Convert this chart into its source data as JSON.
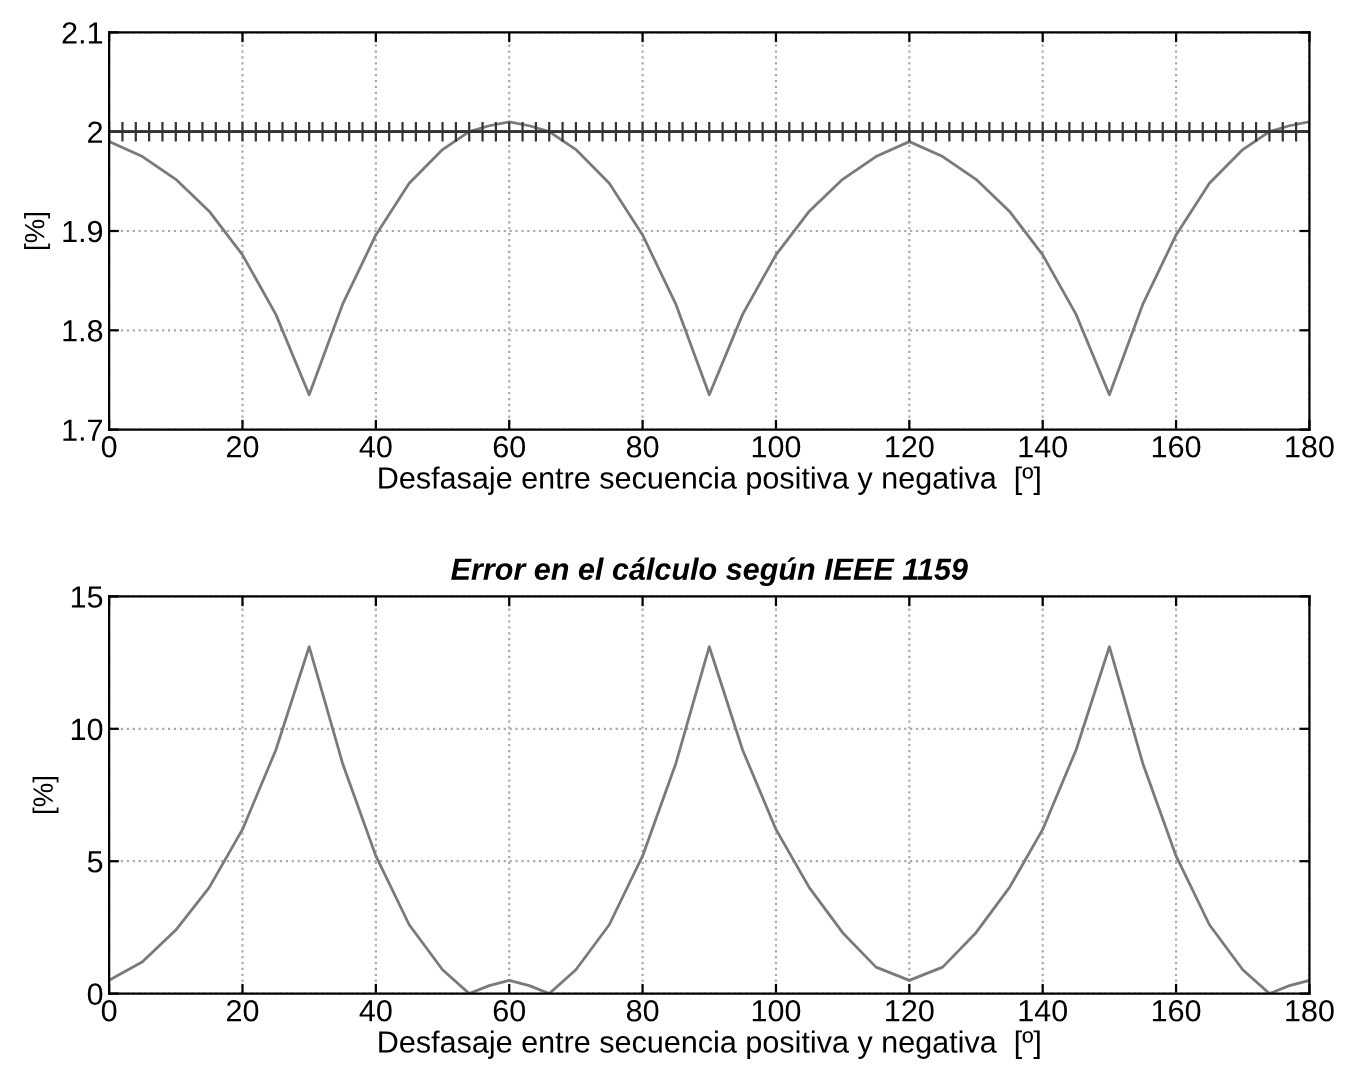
{
  "chart_data": [
    {
      "type": "line",
      "xlabel": "Desfasaje entre secuencia positiva y negativa  [º]",
      "ylabel": "[%]",
      "xlim": [
        0,
        180
      ],
      "ylim": [
        1.7,
        2.1
      ],
      "xticks": [
        0,
        20,
        40,
        60,
        80,
        100,
        120,
        140,
        160,
        180
      ],
      "yticks": [
        1.7,
        1.8,
        1.9,
        2,
        2.1
      ],
      "grid": true,
      "legend": false,
      "series": [
        {
          "color": "#7a7a7a",
          "marker": "none",
          "x": [
            0,
            5,
            10,
            15,
            20,
            25,
            30,
            35,
            40,
            45,
            50,
            54,
            57,
            60,
            63,
            66,
            70,
            75,
            80,
            85,
            90,
            95,
            100,
            105,
            110,
            115,
            120,
            125,
            130,
            135,
            140,
            145,
            150,
            155,
            160,
            165,
            170,
            174,
            177,
            180
          ],
          "values": [
            1.99,
            1.975,
            1.952,
            1.92,
            1.876,
            1.816,
            1.735,
            1.826,
            1.896,
            1.948,
            1.982,
            2.0,
            2.006,
            2.01,
            2.006,
            2.0,
            1.982,
            1.948,
            1.896,
            1.826,
            1.735,
            1.816,
            1.876,
            1.92,
            1.952,
            1.975,
            1.99,
            1.975,
            1.952,
            1.92,
            1.876,
            1.816,
            1.735,
            1.826,
            1.896,
            1.948,
            1.982,
            2.0,
            2.006,
            2.01
          ]
        },
        {
          "color": "#333333",
          "marker": "cross",
          "x": [
            0,
            2,
            4,
            6,
            8,
            10,
            12,
            14,
            16,
            18,
            20,
            22,
            24,
            26,
            28,
            30,
            32,
            34,
            36,
            38,
            40,
            42,
            44,
            46,
            48,
            50,
            52,
            54,
            56,
            58,
            60,
            62,
            64,
            66,
            68,
            70,
            72,
            74,
            76,
            78,
            80,
            82,
            84,
            86,
            88,
            90,
            92,
            94,
            96,
            98,
            100,
            102,
            104,
            106,
            108,
            110,
            112,
            114,
            116,
            118,
            120,
            122,
            124,
            126,
            128,
            130,
            132,
            134,
            136,
            138,
            140,
            142,
            144,
            146,
            148,
            150,
            152,
            154,
            156,
            158,
            160,
            162,
            164,
            166,
            168,
            170,
            172,
            174,
            176,
            178,
            180
          ],
          "values": [
            2,
            2,
            2,
            2,
            2,
            2,
            2,
            2,
            2,
            2,
            2,
            2,
            2,
            2,
            2,
            2,
            2,
            2,
            2,
            2,
            2,
            2,
            2,
            2,
            2,
            2,
            2,
            2,
            2,
            2,
            2,
            2,
            2,
            2,
            2,
            2,
            2,
            2,
            2,
            2,
            2,
            2,
            2,
            2,
            2,
            2,
            2,
            2,
            2,
            2,
            2,
            2,
            2,
            2,
            2,
            2,
            2,
            2,
            2,
            2,
            2,
            2,
            2,
            2,
            2,
            2,
            2,
            2,
            2,
            2,
            2,
            2,
            2,
            2,
            2,
            2,
            2,
            2,
            2,
            2,
            2,
            2,
            2,
            2,
            2,
            2,
            2,
            2,
            2,
            2,
            2
          ]
        }
      ]
    },
    {
      "type": "line",
      "title": "Error en el cálculo según IEEE 1159",
      "xlabel": "Desfasaje entre secuencia positiva y negativa  [º]",
      "ylabel": "[%]",
      "xlim": [
        0,
        180
      ],
      "ylim": [
        0,
        15
      ],
      "xticks": [
        0,
        20,
        40,
        60,
        80,
        100,
        120,
        140,
        160,
        180
      ],
      "yticks": [
        0,
        5,
        10,
        15
      ],
      "grid": true,
      "legend": false,
      "series": [
        {
          "color": "#7a7a7a",
          "marker": "none",
          "x": [
            0,
            5,
            10,
            15,
            20,
            25,
            30,
            35,
            40,
            45,
            50,
            54,
            57,
            60,
            63,
            66,
            70,
            75,
            80,
            85,
            90,
            95,
            100,
            105,
            110,
            115,
            120,
            125,
            130,
            135,
            140,
            145,
            150,
            155,
            160,
            165,
            170,
            174,
            177,
            180
          ],
          "values": [
            0.5,
            1.2,
            2.4,
            4,
            6.2,
            9.2,
            13.1,
            8.7,
            5.2,
            2.6,
            0.9,
            0,
            0.3,
            0.5,
            0.3,
            0,
            0.9,
            2.6,
            5.2,
            8.7,
            13.1,
            9.2,
            6.2,
            4,
            2.3,
            1,
            0.5,
            1,
            2.3,
            4,
            6.2,
            9.2,
            13.1,
            8.7,
            5.2,
            2.6,
            0.9,
            0,
            0.3,
            0.5
          ]
        }
      ]
    }
  ]
}
